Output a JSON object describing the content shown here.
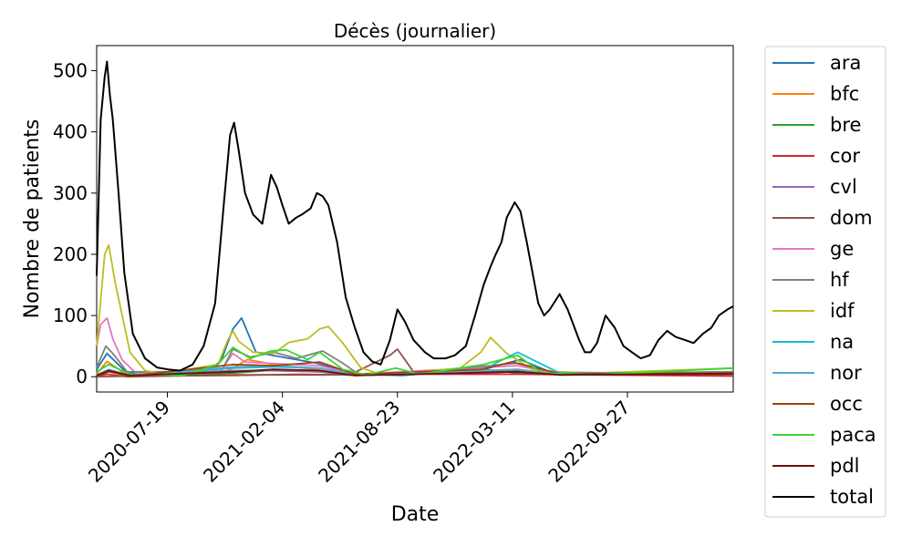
{
  "chart_data": {
    "type": "line",
    "title": "Décès (journalier)",
    "xlabel": "Date",
    "ylabel": "Nombre de patients",
    "x_range": [
      "2020-03-18",
      "2023-03-30"
    ],
    "x_ticks": [
      "2020-07-19",
      "2021-02-04",
      "2021-08-23",
      "2022-03-11",
      "2022-09-27"
    ],
    "y_ticks": [
      0,
      100,
      200,
      300,
      400,
      500
    ],
    "ylim": [
      -25,
      541
    ],
    "grid": false,
    "legend_position": "outside-right",
    "series": [
      {
        "name": "ara",
        "color": "#1f77b4",
        "x": [
          "2020-03-18",
          "2020-04-05",
          "2020-05-10",
          "2020-09-15",
          "2020-10-20",
          "2020-11-10",
          "2020-11-25",
          "2020-12-20",
          "2021-02-04",
          "2021-04-05",
          "2021-06-10",
          "2021-09-01",
          "2022-01-20",
          "2022-03-25",
          "2022-05-15",
          "2022-08-01",
          "2023-03-30"
        ],
        "y": [
          12,
          38,
          6,
          3,
          25,
          78,
          96,
          40,
          32,
          22,
          4,
          2,
          12,
          28,
          8,
          5,
          8
        ]
      },
      {
        "name": "bfc",
        "color": "#ff7f0e",
        "x": [
          "2020-03-18",
          "2020-04-05",
          "2020-05-10",
          "2020-10-15",
          "2020-11-10",
          "2020-12-05",
          "2021-01-20",
          "2021-04-01",
          "2021-06-10",
          "2022-03-20",
          "2022-06-01",
          "2023-03-30"
        ],
        "y": [
          5,
          25,
          3,
          3,
          14,
          28,
          20,
          12,
          3,
          12,
          3,
          4
        ]
      },
      {
        "name": "bre",
        "color": "#2ca02c",
        "x": [
          "2020-03-18",
          "2020-04-08",
          "2020-05-20",
          "2020-11-10",
          "2021-01-10",
          "2021-04-10",
          "2021-06-10",
          "2022-03-20",
          "2022-06-01",
          "2023-03-30"
        ],
        "y": [
          2,
          8,
          1,
          6,
          10,
          8,
          2,
          10,
          3,
          5
        ]
      },
      {
        "name": "cor",
        "color": "#d62728",
        "x": [
          "2020-03-18",
          "2020-04-05",
          "2020-05-10",
          "2020-11-10",
          "2021-04-10",
          "2021-08-20",
          "2022-03-20",
          "2023-03-30"
        ],
        "y": [
          1,
          4,
          0,
          3,
          3,
          4,
          4,
          1
        ]
      },
      {
        "name": "cvl",
        "color": "#9467bd",
        "x": [
          "2020-03-18",
          "2020-04-08",
          "2020-05-15",
          "2020-11-10",
          "2021-01-20",
          "2021-04-10",
          "2021-06-10",
          "2022-03-20",
          "2023-03-30"
        ],
        "y": [
          3,
          10,
          2,
          10,
          10,
          8,
          2,
          8,
          4
        ]
      },
      {
        "name": "dom",
        "color": "#8c564b",
        "x": [
          "2020-03-18",
          "2020-06-01",
          "2020-11-10",
          "2021-03-01",
          "2021-06-01",
          "2021-08-10",
          "2021-08-23",
          "2021-09-20",
          "2022-01-15",
          "2022-03-20",
          "2022-06-01",
          "2023-03-30"
        ],
        "y": [
          0,
          1,
          2,
          4,
          3,
          35,
          45,
          8,
          12,
          6,
          4,
          4
        ]
      },
      {
        "name": "ge",
        "color": "#e377c2",
        "x": [
          "2020-03-18",
          "2020-03-25",
          "2020-04-05",
          "2020-04-15",
          "2020-05-01",
          "2020-05-25",
          "2020-10-20",
          "2020-11-10",
          "2020-12-01",
          "2021-01-10",
          "2021-04-10",
          "2021-06-10",
          "2022-03-20",
          "2022-06-01",
          "2023-03-30"
        ],
        "y": [
          50,
          85,
          96,
          62,
          28,
          6,
          10,
          38,
          24,
          22,
          18,
          4,
          18,
          4,
          8
        ]
      },
      {
        "name": "hf",
        "color": "#7f7f7f",
        "x": [
          "2020-03-18",
          "2020-04-03",
          "2020-04-15",
          "2020-05-10",
          "2020-10-20",
          "2020-11-10",
          "2020-12-10",
          "2021-01-20",
          "2021-03-01",
          "2021-04-15",
          "2021-05-20",
          "2021-06-15",
          "2021-08-01",
          "2022-03-20",
          "2022-06-01",
          "2023-03-30"
        ],
        "y": [
          15,
          50,
          38,
          8,
          8,
          45,
          32,
          40,
          30,
          42,
          22,
          5,
          3,
          22,
          5,
          8
        ]
      },
      {
        "name": "idf",
        "color": "#bcbd22",
        "x": [
          "2020-03-18",
          "2020-04-01",
          "2020-04-08",
          "2020-04-20",
          "2020-05-15",
          "2020-06-10",
          "2020-07-10",
          "2020-10-15",
          "2020-11-01",
          "2020-11-10",
          "2020-11-20",
          "2020-12-15",
          "2021-01-20",
          "2021-02-15",
          "2021-03-20",
          "2021-04-10",
          "2021-04-25",
          "2021-05-20",
          "2021-06-20",
          "2021-07-20",
          "2021-09-10",
          "2021-12-10",
          "2022-01-15",
          "2022-02-01",
          "2022-03-01",
          "2022-04-15",
          "2022-06-01",
          "2022-08-01",
          "2023-03-30"
        ],
        "y": [
          50,
          200,
          215,
          150,
          40,
          10,
          5,
          20,
          60,
          75,
          58,
          40,
          38,
          56,
          62,
          78,
          82,
          55,
          15,
          5,
          6,
          14,
          40,
          64,
          38,
          12,
          8,
          6,
          14
        ]
      },
      {
        "name": "na",
        "color": "#17becf",
        "x": [
          "2020-03-18",
          "2020-04-08",
          "2020-05-15",
          "2020-11-10",
          "2021-01-20",
          "2021-04-10",
          "2021-06-10",
          "2022-01-15",
          "2022-03-20",
          "2022-06-01",
          "2023-03-30"
        ],
        "y": [
          2,
          10,
          2,
          14,
          16,
          14,
          3,
          10,
          40,
          6,
          6
        ]
      },
      {
        "name": "nor",
        "color": "#53a8d8",
        "x": [
          "2020-03-18",
          "2020-04-08",
          "2020-05-15",
          "2020-11-10",
          "2021-01-20",
          "2021-04-10",
          "2021-06-10",
          "2022-03-20",
          "2022-06-01",
          "2023-03-30"
        ],
        "y": [
          3,
          12,
          2,
          16,
          18,
          14,
          3,
          12,
          3,
          6
        ]
      },
      {
        "name": "occ",
        "color": "#a0440c",
        "x": [
          "2020-03-18",
          "2020-04-08",
          "2020-05-15",
          "2020-11-10",
          "2021-01-20",
          "2021-04-10",
          "2021-06-10",
          "2022-01-15",
          "2022-03-10",
          "2022-06-01",
          "2023-03-30"
        ],
        "y": [
          2,
          8,
          1,
          20,
          18,
          24,
          4,
          12,
          24,
          5,
          6
        ]
      },
      {
        "name": "paca",
        "color": "#3bd630",
        "x": [
          "2020-03-18",
          "2020-04-08",
          "2020-05-15",
          "2020-08-15",
          "2020-10-15",
          "2020-11-10",
          "2020-12-10",
          "2021-01-15",
          "2021-02-10",
          "2021-03-20",
          "2021-04-10",
          "2021-05-20",
          "2021-07-01",
          "2021-08-20",
          "2021-10-01",
          "2022-01-20",
          "2022-03-20",
          "2022-05-01",
          "2022-08-01",
          "2023-03-30"
        ],
        "y": [
          8,
          20,
          4,
          2,
          20,
          48,
          30,
          42,
          44,
          28,
          40,
          12,
          3,
          14,
          4,
          20,
          35,
          6,
          3,
          14
        ]
      },
      {
        "name": "pdl",
        "color": "#6b0f0f",
        "x": [
          "2020-03-18",
          "2020-04-08",
          "2020-05-15",
          "2020-11-10",
          "2021-01-20",
          "2021-04-10",
          "2021-06-10",
          "2022-03-20",
          "2022-06-01",
          "2023-03-30"
        ],
        "y": [
          2,
          10,
          2,
          8,
          12,
          10,
          2,
          8,
          3,
          5
        ]
      },
      {
        "name": "total",
        "color": "#000000",
        "x": [
          "2020-03-18",
          "2020-03-25",
          "2020-04-01",
          "2020-04-05",
          "2020-04-10",
          "2020-04-15",
          "2020-04-25",
          "2020-05-05",
          "2020-05-20",
          "2020-06-10",
          "2020-07-01",
          "2020-07-20",
          "2020-08-10",
          "2020-09-01",
          "2020-09-20",
          "2020-10-10",
          "2020-10-25",
          "2020-11-05",
          "2020-11-12",
          "2020-11-20",
          "2020-12-01",
          "2020-12-15",
          "2020-12-31",
          "2021-01-15",
          "2021-01-25",
          "2021-02-04",
          "2021-02-15",
          "2021-02-28",
          "2021-03-10",
          "2021-03-25",
          "2021-04-05",
          "2021-04-15",
          "2021-04-25",
          "2021-05-10",
          "2021-05-25",
          "2021-06-10",
          "2021-06-25",
          "2021-07-10",
          "2021-07-25",
          "2021-08-10",
          "2021-08-23",
          "2021-09-05",
          "2021-09-20",
          "2021-10-10",
          "2021-10-25",
          "2021-11-15",
          "2021-12-01",
          "2021-12-20",
          "2022-01-05",
          "2022-01-20",
          "2022-02-01",
          "2022-02-10",
          "2022-02-20",
          "2022-03-01",
          "2022-03-15",
          "2022-03-25",
          "2022-04-05",
          "2022-04-15",
          "2022-04-25",
          "2022-05-05",
          "2022-05-15",
          "2022-06-01",
          "2022-06-15",
          "2022-06-25",
          "2022-07-05",
          "2022-07-15",
          "2022-07-25",
          "2022-08-05",
          "2022-08-20",
          "2022-09-05",
          "2022-09-20",
          "2022-10-05",
          "2022-10-20",
          "2022-11-05",
          "2022-11-20",
          "2022-12-05",
          "2022-12-20",
          "2023-01-05",
          "2023-01-20",
          "2023-02-05",
          "2023-02-20",
          "2023-03-05",
          "2023-03-20",
          "2023-03-30"
        ],
        "y": [
          165,
          420,
          490,
          515,
          460,
          420,
          300,
          170,
          70,
          30,
          15,
          12,
          10,
          20,
          50,
          120,
          280,
          395,
          415,
          370,
          300,
          265,
          250,
          330,
          310,
          280,
          250,
          260,
          265,
          275,
          300,
          295,
          280,
          220,
          130,
          80,
          40,
          25,
          20,
          60,
          110,
          90,
          60,
          40,
          30,
          30,
          35,
          50,
          100,
          150,
          180,
          200,
          220,
          260,
          285,
          270,
          220,
          170,
          120,
          100,
          110,
          135,
          110,
          85,
          60,
          40,
          40,
          55,
          100,
          80,
          50,
          40,
          30,
          35,
          60,
          75,
          65,
          60,
          55,
          70,
          80,
          100,
          110,
          115
        ]
      }
    ]
  }
}
